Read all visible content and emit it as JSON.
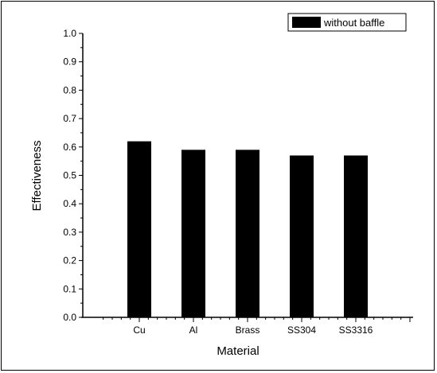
{
  "chart_data": {
    "type": "bar",
    "categories": [
      "Cu",
      "Al",
      "Brass",
      "SS304",
      "SS3316"
    ],
    "series": [
      {
        "name": "without baffle",
        "values": [
          0.62,
          0.59,
          0.59,
          0.57,
          0.57
        ],
        "color": "#000000"
      }
    ],
    "xlabel": "Material",
    "ylabel": "Effectiveness",
    "ylim": [
      0.0,
      1.0
    ],
    "yticks": [
      "0.0",
      "0.1",
      "0.2",
      "0.3",
      "0.4",
      "0.5",
      "0.6",
      "0.7",
      "0.8",
      "0.9",
      "1.0"
    ],
    "grid": false,
    "legend_position": "top-right"
  }
}
